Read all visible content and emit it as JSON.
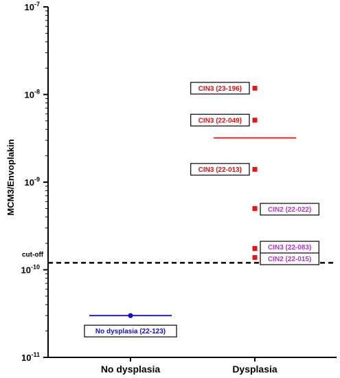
{
  "chart_data": {
    "type": "scatter",
    "title": "",
    "ylabel": "MCM3/Envoplakin",
    "xlabel": "",
    "y_scale": "log",
    "ylim": [
      1e-11,
      1e-07
    ],
    "y_ticks": [
      {
        "value": 1e-07,
        "base": "10",
        "exp": "-7"
      },
      {
        "value": 1e-08,
        "base": "10",
        "exp": "-8"
      },
      {
        "value": 1e-09,
        "base": "10",
        "exp": "-9"
      },
      {
        "value": 1e-10,
        "base": "10",
        "exp": "-10"
      },
      {
        "value": 1e-11,
        "base": "10",
        "exp": "-11"
      }
    ],
    "categories": [
      "No dysplasia",
      "Dysplasia"
    ],
    "groups": [
      {
        "category": "No dysplasia",
        "color": "#1010cc",
        "marker": "circle",
        "mean": 3e-11,
        "points": [
          {
            "label": "No dysplasia (22-123)",
            "value": 3e-11
          }
        ]
      },
      {
        "category": "Dysplasia",
        "color": "#ee1111",
        "marker": "square",
        "mean": 3.2e-09,
        "points": [
          {
            "label": "CIN3 (23-196)",
            "value": 1.18e-08,
            "label_color": "#e01010"
          },
          {
            "label": "CIN3 (22-049)",
            "value": 5.1e-09,
            "label_color": "#e01010"
          },
          {
            "label": "CIN3 (22-013)",
            "value": 1.4e-09,
            "label_color": "#e01010"
          },
          {
            "label": "CIN2 (22-022)",
            "value": 5e-10,
            "label_color": "#bb33cc"
          },
          {
            "label": "CIN3 (22-083)",
            "value": 1.75e-10,
            "label_color": "#bb33cc"
          },
          {
            "label": "CIN2 (22-015)",
            "value": 1.38e-10,
            "label_color": "#bb33cc"
          }
        ]
      }
    ],
    "cutoff": {
      "label": "cut-off",
      "value": 1.2e-10
    }
  }
}
